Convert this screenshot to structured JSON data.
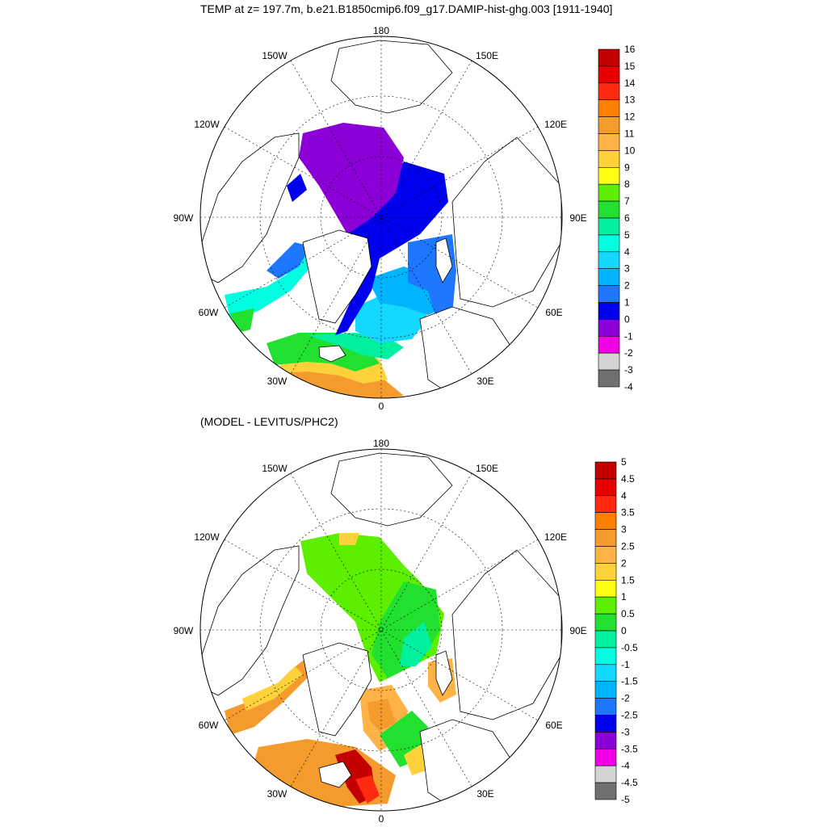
{
  "panels": [
    {
      "title": "TEMP at z= 197.7m, b.e21.B1850cmip6.f09_g17.DAMIP-hist-ghg.003 [1911-1940]",
      "labelbar": {
        "labels": [
          "16",
          "15",
          "14",
          "13",
          "12",
          "11",
          "10",
          "9",
          "8",
          "7",
          "6",
          "5",
          "4",
          "3",
          "2",
          "1",
          "0",
          "-1",
          "-2",
          "-3",
          "-4"
        ],
        "colors": [
          "#c40000",
          "#e60000",
          "#ff2a10",
          "#ff8000",
          "#f59a2c",
          "#ffb347",
          "#ffd23c",
          "#ffff14",
          "#5cf000",
          "#22e030",
          "#00f0a0",
          "#00ffe0",
          "#14d8ff",
          "#00b4ff",
          "#1e78ff",
          "#0000f0",
          "#8c00d8",
          "#f000e6",
          "#d4d4d4",
          "#707070"
        ]
      }
    },
    {
      "title": "(MODEL - LEVITUS/PHC2)",
      "labelbar": {
        "labels": [
          "5",
          "4.5",
          "4",
          "3.5",
          "3",
          "2.5",
          "2",
          "1.5",
          "1",
          "0.5",
          "0",
          "-0.5",
          "-1",
          "-1.5",
          "-2",
          "-2.5",
          "-3",
          "-3.5",
          "-4",
          "-4.5",
          "-5"
        ],
        "colors": [
          "#c40000",
          "#e60000",
          "#ff2a10",
          "#ff8000",
          "#f59a2c",
          "#ffb347",
          "#ffd23c",
          "#ffff14",
          "#5cf000",
          "#22e030",
          "#00f0a0",
          "#00ffe0",
          "#14d8ff",
          "#00b4ff",
          "#1e78ff",
          "#0000f0",
          "#8c00d8",
          "#f000e6",
          "#d4d4d4",
          "#707070"
        ]
      }
    }
  ],
  "lon_labels": {
    "top": "180",
    "upper_left": "150W",
    "upper_right": "150E",
    "left_upper": "120W",
    "right_upper": "120E",
    "left": "90W",
    "right": "90E",
    "left_lower": "60W",
    "right_lower": "60E",
    "bottom_left": "30W",
    "bottom_right": "30E",
    "bottom": "0"
  }
}
